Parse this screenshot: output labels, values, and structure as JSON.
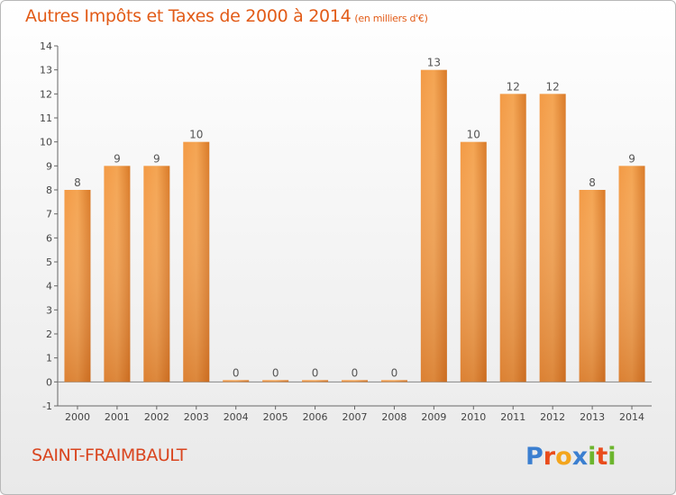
{
  "title": "Autres Impôts et Taxes de 2000 à 2014",
  "unit": "(en milliers d'€)",
  "commune": "SAINT-FRAIMBAULT",
  "logo_text": "Proxiti",
  "colors": {
    "title": "#e25b17",
    "bar_light": "#f6a552",
    "bar_dark": "#c8661a",
    "axis": "#555555"
  },
  "chart_data": {
    "type": "bar",
    "title": "Autres Impôts et Taxes de 2000 à 2014",
    "subtitle": "(en milliers d'€)",
    "xlabel": "",
    "ylabel": "",
    "categories": [
      "2000",
      "2001",
      "2002",
      "2003",
      "2004",
      "2005",
      "2006",
      "2007",
      "2008",
      "2009",
      "2010",
      "2011",
      "2012",
      "2013",
      "2014"
    ],
    "values": [
      8,
      9,
      9,
      10,
      0,
      0,
      0,
      0,
      0,
      13,
      10,
      12,
      12,
      8,
      9
    ],
    "ylim": [
      -1,
      14
    ],
    "yticks": [
      -1,
      0,
      1,
      2,
      3,
      4,
      5,
      6,
      7,
      8,
      9,
      10,
      11,
      12,
      13,
      14
    ],
    "grid": false,
    "legend": "none",
    "data_labels": true
  }
}
